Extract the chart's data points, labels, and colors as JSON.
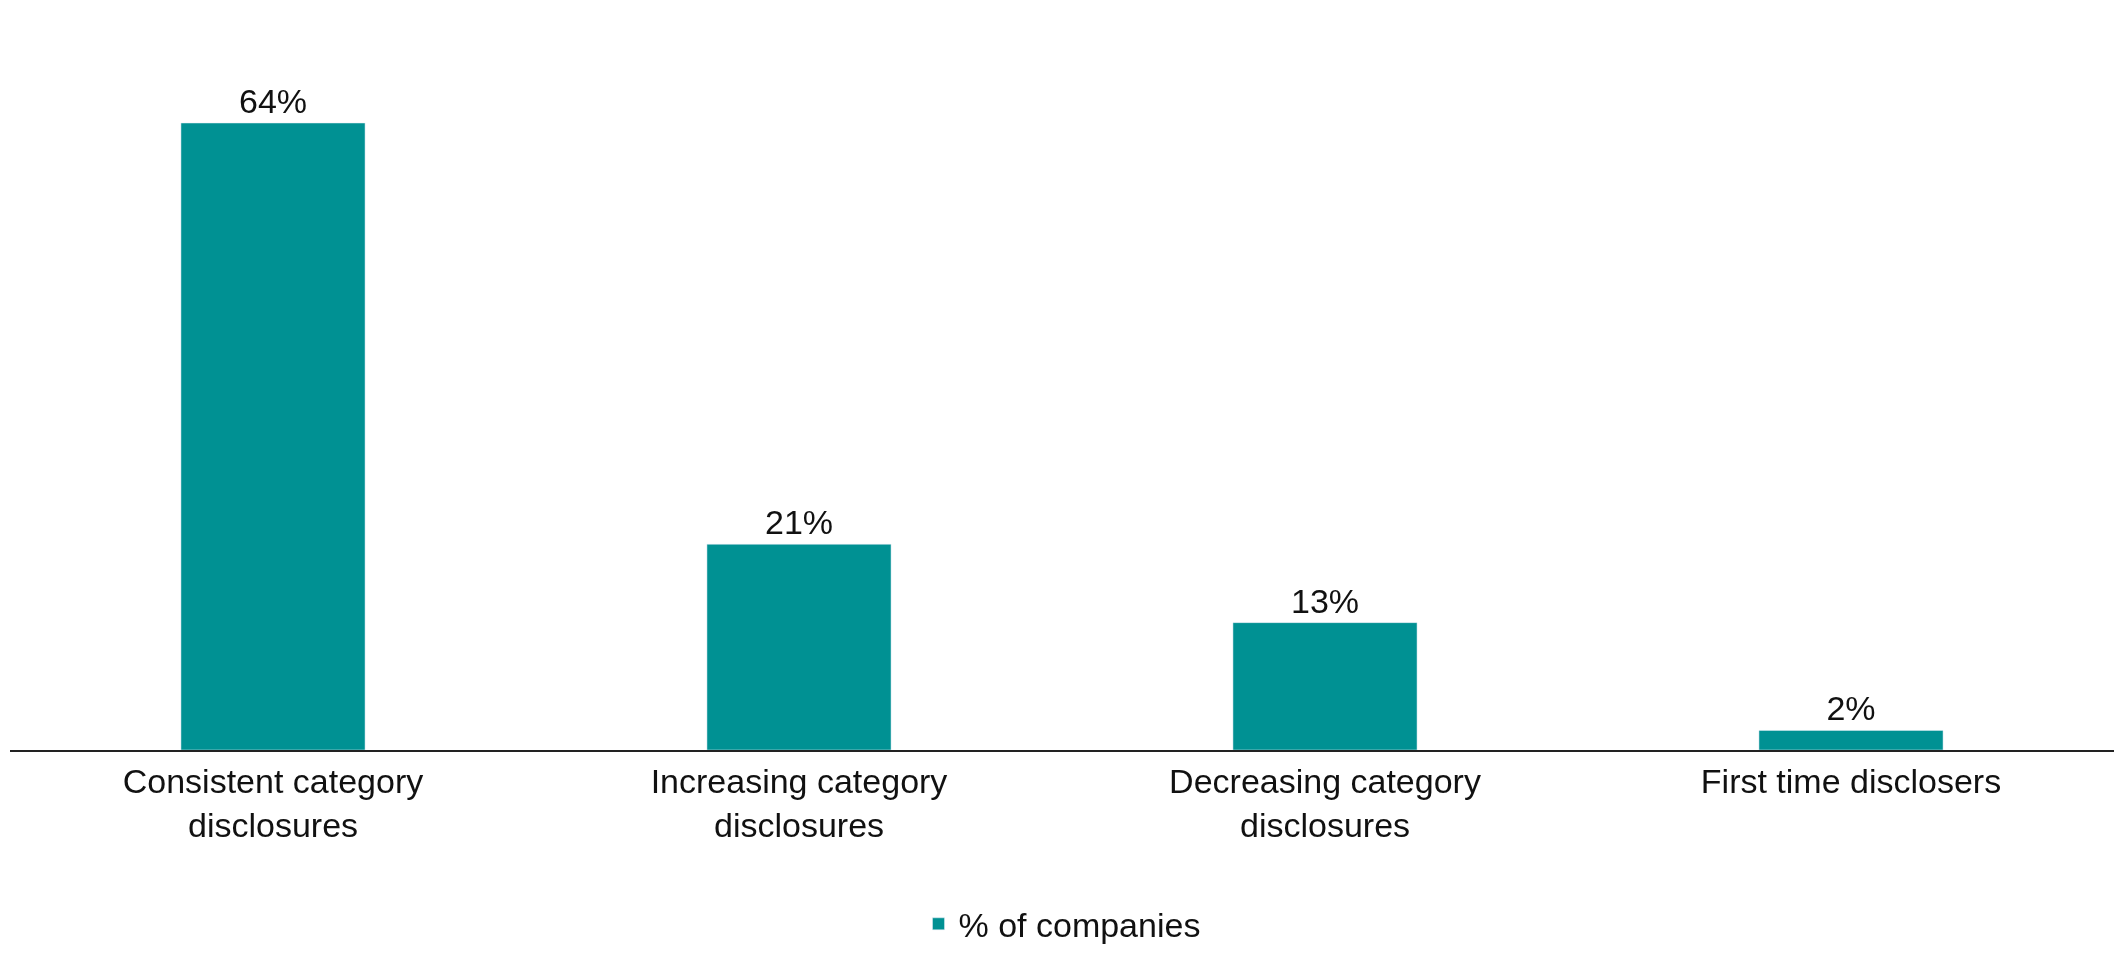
{
  "chart_data": {
    "type": "bar",
    "categories": [
      "Consistent category disclosures",
      "Increasing category disclosures",
      "Decreasing category disclosures",
      "First time disclosers"
    ],
    "series": [
      {
        "name": "% of companies",
        "color": "#009193",
        "values": [
          64,
          21,
          13,
          2
        ],
        "value_labels": [
          "64%",
          "21%",
          "13%",
          "2%"
        ]
      }
    ],
    "legend": "bottom"
  }
}
